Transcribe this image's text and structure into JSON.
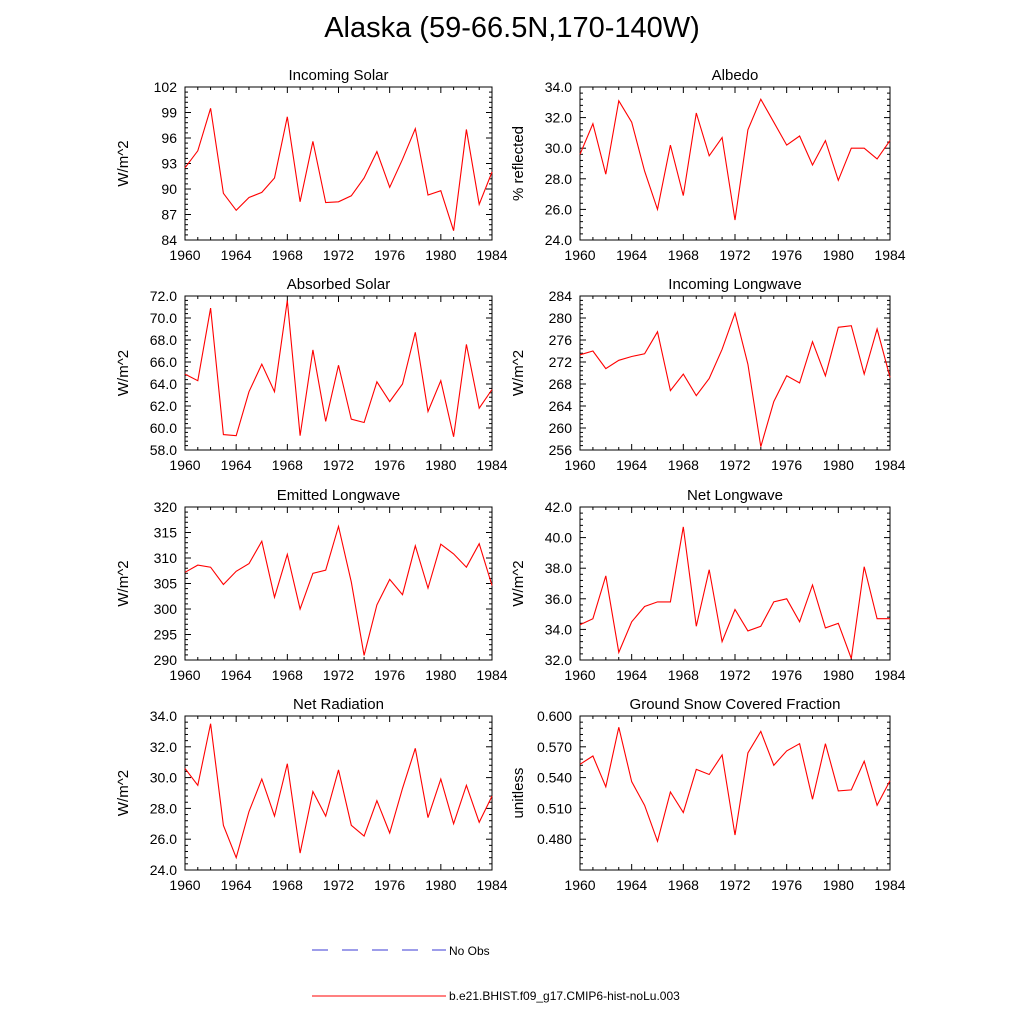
{
  "title": "Alaska (59-66.5N,170-140W)",
  "legend": [
    {
      "label": "No Obs",
      "color": "#3b3bd6",
      "dash": true
    },
    {
      "label": "b.e21.BHIST.f09_g17.CMIP6-hist-noLu.003",
      "color": "#ff0000",
      "dash": false
    }
  ],
  "chart_data": [
    {
      "type": "line",
      "title": "Incoming Solar",
      "ylabel": "W/m^2",
      "xlim": [
        1960,
        1984
      ],
      "xticks": [
        "1960",
        "1964",
        "1968",
        "1972",
        "1976",
        "1980",
        "1984"
      ],
      "ylim": [
        84,
        102
      ],
      "yticks": [
        "84",
        "87",
        "90",
        "93",
        "96",
        "99",
        "102"
      ],
      "series": [
        {
          "color": "#ff0000",
          "x": [
            1960,
            1961,
            1962,
            1963,
            1964,
            1965,
            1966,
            1967,
            1968,
            1969,
            1970,
            1971,
            1972,
            1973,
            1974,
            1975,
            1976,
            1977,
            1978,
            1979,
            1980,
            1981,
            1982,
            1983,
            1984
          ],
          "values": [
            92.5,
            94.5,
            99.5,
            89.5,
            87.5,
            89.0,
            89.6,
            91.3,
            98.5,
            88.5,
            95.6,
            88.4,
            88.5,
            89.2,
            91.3,
            94.4,
            90.2,
            93.5,
            97.1,
            89.3,
            89.8,
            85.1,
            97.0,
            88.2,
            92.0
          ]
        }
      ]
    },
    {
      "type": "line",
      "title": "Albedo",
      "ylabel": "% reflected",
      "xlim": [
        1960,
        1984
      ],
      "xticks": [
        "1960",
        "1964",
        "1968",
        "1972",
        "1976",
        "1980",
        "1984"
      ],
      "ylim": [
        24,
        34
      ],
      "yticks": [
        "24.0",
        "26.0",
        "28.0",
        "30.0",
        "32.0",
        "34.0"
      ],
      "series": [
        {
          "color": "#ff0000",
          "x": [
            1960,
            1961,
            1962,
            1963,
            1964,
            1965,
            1966,
            1967,
            1968,
            1969,
            1970,
            1971,
            1972,
            1973,
            1974,
            1975,
            1976,
            1977,
            1978,
            1979,
            1980,
            1981,
            1982,
            1983,
            1984
          ],
          "values": [
            29.6,
            31.6,
            28.3,
            33.1,
            31.7,
            28.5,
            26.0,
            30.2,
            26.9,
            32.3,
            29.5,
            30.7,
            25.3,
            31.2,
            33.2,
            31.7,
            30.2,
            30.8,
            28.9,
            30.5,
            27.9,
            30.0,
            30.0,
            29.3,
            30.5
          ]
        }
      ]
    },
    {
      "type": "line",
      "title": "Absorbed Solar",
      "ylabel": "W/m^2",
      "xlim": [
        1960,
        1984
      ],
      "xticks": [
        "1960",
        "1964",
        "1968",
        "1972",
        "1976",
        "1980",
        "1984"
      ],
      "ylim": [
        58,
        72
      ],
      "yticks": [
        "58.0",
        "60.0",
        "62.0",
        "64.0",
        "66.0",
        "68.0",
        "70.0",
        "72.0"
      ],
      "series": [
        {
          "color": "#ff0000",
          "x": [
            1960,
            1961,
            1962,
            1963,
            1964,
            1965,
            1966,
            1967,
            1968,
            1969,
            1970,
            1971,
            1972,
            1973,
            1974,
            1975,
            1976,
            1977,
            1978,
            1979,
            1980,
            1981,
            1982,
            1983,
            1984
          ],
          "values": [
            64.9,
            64.3,
            70.9,
            59.4,
            59.3,
            63.3,
            65.8,
            63.3,
            71.6,
            59.3,
            67.1,
            60.6,
            65.7,
            60.8,
            60.5,
            64.2,
            62.4,
            64.0,
            68.7,
            61.5,
            64.3,
            59.2,
            67.6,
            61.8,
            63.5
          ]
        }
      ]
    },
    {
      "type": "line",
      "title": "Incoming Longwave",
      "ylabel": "W/m^2",
      "xlim": [
        1960,
        1984
      ],
      "xticks": [
        "1960",
        "1964",
        "1968",
        "1972",
        "1976",
        "1980",
        "1984"
      ],
      "ylim": [
        256,
        284
      ],
      "yticks": [
        "256",
        "260",
        "264",
        "268",
        "272",
        "276",
        "280",
        "284"
      ],
      "series": [
        {
          "color": "#ff0000",
          "x": [
            1960,
            1961,
            1962,
            1963,
            1964,
            1965,
            1966,
            1967,
            1968,
            1969,
            1970,
            1971,
            1972,
            1973,
            1974,
            1975,
            1976,
            1977,
            1978,
            1979,
            1980,
            1981,
            1982,
            1983,
            1984
          ],
          "values": [
            273.3,
            274.0,
            270.8,
            272.3,
            273.0,
            273.5,
            277.5,
            266.8,
            269.8,
            265.9,
            269.0,
            274.3,
            280.9,
            271.6,
            256.6,
            264.8,
            269.5,
            268.2,
            275.7,
            269.5,
            278.3,
            278.6,
            269.8,
            278.0,
            269.2
          ]
        }
      ]
    },
    {
      "type": "line",
      "title": "Emitted Longwave",
      "ylabel": "W/m^2",
      "xlim": [
        1960,
        1984
      ],
      "xticks": [
        "1960",
        "1964",
        "1968",
        "1972",
        "1976",
        "1980",
        "1984"
      ],
      "ylim": [
        290,
        320
      ],
      "yticks": [
        "290",
        "295",
        "300",
        "305",
        "310",
        "315",
        "320"
      ],
      "series": [
        {
          "color": "#ff0000",
          "x": [
            1960,
            1961,
            1962,
            1963,
            1964,
            1965,
            1966,
            1967,
            1968,
            1969,
            1970,
            1971,
            1972,
            1973,
            1974,
            1975,
            1976,
            1977,
            1978,
            1979,
            1980,
            1981,
            1982,
            1983,
            1984
          ],
          "values": [
            307.2,
            308.6,
            308.2,
            304.8,
            307.4,
            308.9,
            313.3,
            302.3,
            310.7,
            300.0,
            307.0,
            307.6,
            316.2,
            305.3,
            290.9,
            300.8,
            305.8,
            302.8,
            312.4,
            304.1,
            312.7,
            310.8,
            308.2,
            312.8,
            304.6
          ]
        }
      ]
    },
    {
      "type": "line",
      "title": "Net Longwave",
      "ylabel": "W/m^2",
      "xlim": [
        1960,
        1984
      ],
      "xticks": [
        "1960",
        "1964",
        "1968",
        "1972",
        "1976",
        "1980",
        "1984"
      ],
      "ylim": [
        32,
        42
      ],
      "yticks": [
        "32.0",
        "34.0",
        "36.0",
        "38.0",
        "40.0",
        "42.0"
      ],
      "series": [
        {
          "color": "#ff0000",
          "x": [
            1960,
            1961,
            1962,
            1963,
            1964,
            1965,
            1966,
            1967,
            1968,
            1969,
            1970,
            1971,
            1972,
            1973,
            1974,
            1975,
            1976,
            1977,
            1978,
            1979,
            1980,
            1981,
            1982,
            1983,
            1984
          ],
          "values": [
            34.3,
            34.7,
            37.5,
            32.5,
            34.5,
            35.5,
            35.8,
            35.8,
            40.7,
            34.2,
            37.9,
            33.2,
            35.3,
            33.9,
            34.2,
            35.8,
            36.0,
            34.5,
            36.9,
            34.1,
            34.4,
            32.1,
            38.1,
            34.7,
            34.7
          ]
        }
      ]
    },
    {
      "type": "line",
      "title": "Net Radiation",
      "ylabel": "W/m^2",
      "xlim": [
        1960,
        1984
      ],
      "xticks": [
        "1960",
        "1964",
        "1968",
        "1972",
        "1976",
        "1980",
        "1984"
      ],
      "ylim": [
        24,
        34
      ],
      "yticks": [
        "24.0",
        "26.0",
        "28.0",
        "30.0",
        "32.0",
        "34.0"
      ],
      "series": [
        {
          "color": "#ff0000",
          "x": [
            1960,
            1961,
            1962,
            1963,
            1964,
            1965,
            1966,
            1967,
            1968,
            1969,
            1970,
            1971,
            1972,
            1973,
            1974,
            1975,
            1976,
            1977,
            1978,
            1979,
            1980,
            1981,
            1982,
            1983,
            1984
          ],
          "values": [
            30.6,
            29.5,
            33.5,
            26.9,
            24.8,
            27.8,
            29.9,
            27.5,
            30.9,
            25.1,
            29.1,
            27.5,
            30.5,
            26.9,
            26.2,
            28.5,
            26.4,
            29.3,
            31.9,
            27.4,
            29.9,
            27.0,
            29.5,
            27.1,
            28.8
          ]
        }
      ]
    },
    {
      "type": "line",
      "title": "Ground Snow Covered Fraction",
      "ylabel": "unitless",
      "xlim": [
        1960,
        1984
      ],
      "xticks": [
        "1960",
        "1964",
        "1968",
        "1972",
        "1976",
        "1980",
        "1984"
      ],
      "ylim": [
        0.45,
        0.6
      ],
      "yticks": [
        "0.480",
        "0.510",
        "0.540",
        "0.570",
        "0.600"
      ],
      "series": [
        {
          "color": "#ff0000",
          "x": [
            1960,
            1961,
            1962,
            1963,
            1964,
            1965,
            1966,
            1967,
            1968,
            1969,
            1970,
            1971,
            1972,
            1973,
            1974,
            1975,
            1976,
            1977,
            1978,
            1979,
            1980,
            1981,
            1982,
            1983,
            1984
          ],
          "values": [
            0.553,
            0.561,
            0.531,
            0.589,
            0.536,
            0.513,
            0.478,
            0.526,
            0.506,
            0.548,
            0.543,
            0.562,
            0.484,
            0.564,
            0.585,
            0.552,
            0.566,
            0.573,
            0.519,
            0.573,
            0.527,
            0.528,
            0.556,
            0.513,
            0.537
          ]
        }
      ]
    }
  ]
}
